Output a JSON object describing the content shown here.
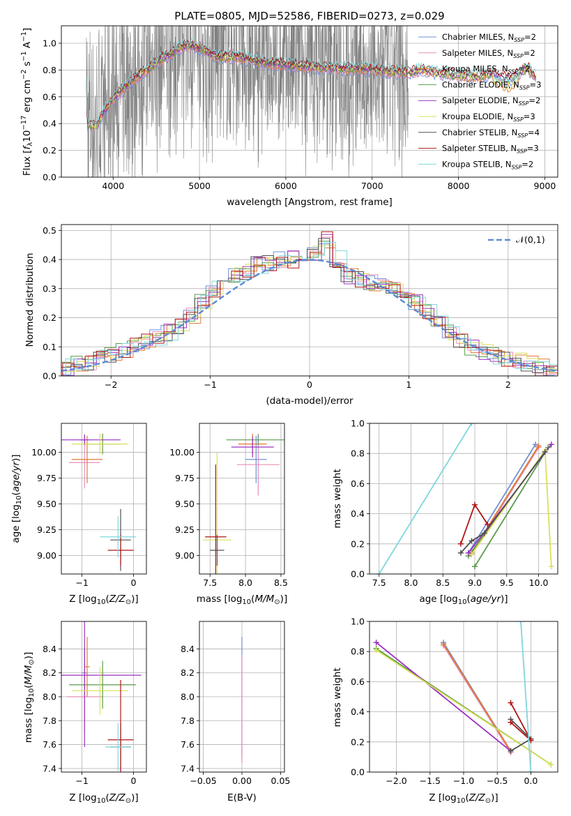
{
  "figure_title": "PLATE=0805, MJD=52586, FIBERID=0273, z=0.029",
  "colors": {
    "chabrier_miles": "#6f8fd8",
    "salpeter_miles": "#e58fb8",
    "kroupa_miles": "#e07b30",
    "chabrier_elodie": "#5a9a4c",
    "salpeter_elodie": "#9b30c0",
    "kroupa_elodie": "#d9e05a",
    "chabrier_stelib": "#505050",
    "salpeter_stelib": "#b01515",
    "kroupa_stelib": "#7fd7dc",
    "data": "#808080",
    "gaussian": "#5b8bd6"
  },
  "chart_data": [
    {
      "id": "spectrum",
      "type": "line",
      "title": "PLATE=0805, MJD=52586, FIBERID=0273, z=0.029",
      "xlabel": "wavelength [Angstrom, rest frame]",
      "ylabel": "Flux [f_λ 10^-17 erg cm^-2 s^-1 A^-1]",
      "xlim": [
        3400,
        9150
      ],
      "ylim": [
        0,
        1.13
      ],
      "xticks": [
        4000,
        5000,
        6000,
        7000,
        8000,
        9000
      ],
      "yticks": [
        0.0,
        0.2,
        0.4,
        0.6,
        0.8,
        1.0
      ],
      "data_range": [
        3690,
        7420
      ],
      "legend_position": "top-right",
      "legend": [
        "Chabrier MILES, N_SSP=2",
        "Salpeter MILES, N_SSP=2",
        "Kroupa MILES, N_SSP=2",
        "Chabrier ELODIE, N_SSP=3",
        "Salpeter ELODIE, N_SSP=2",
        "Kroupa ELODIE, N_SSP=3",
        "Chabrier STELIB, N_SSP=4",
        "Salpeter STELIB, N_SSP=3",
        "Kroupa STELIB, N_SSP=2"
      ],
      "model_continuum": {
        "x": [
          3700,
          3800,
          3900,
          4000,
          4100,
          4200,
          4300,
          4400,
          4500,
          4600,
          4700,
          4800,
          4900,
          5000,
          5100,
          5200,
          5300,
          5400,
          5500,
          5600,
          5800,
          6000,
          6200,
          6400,
          6600,
          6800,
          7000,
          7200,
          7400,
          7600,
          7800,
          8000,
          8200,
          8400,
          8600,
          8800,
          8900
        ],
        "y": [
          0.4,
          0.37,
          0.5,
          0.58,
          0.65,
          0.71,
          0.76,
          0.8,
          0.86,
          0.9,
          0.93,
          0.98,
          0.98,
          0.96,
          0.93,
          0.9,
          0.9,
          0.9,
          0.89,
          0.87,
          0.85,
          0.84,
          0.83,
          0.82,
          0.81,
          0.81,
          0.8,
          0.79,
          0.78,
          0.8,
          0.77,
          0.76,
          0.75,
          0.77,
          0.73,
          0.82,
          0.74
        ]
      }
    },
    {
      "id": "residuals",
      "type": "line",
      "xlabel": "(data-model)/error",
      "ylabel": "Normed distribution",
      "xlim": [
        -2.5,
        2.5
      ],
      "ylim": [
        0,
        0.52
      ],
      "xticks": [
        -2,
        -1,
        0,
        1,
        2
      ],
      "yticks": [
        0.0,
        0.1,
        0.2,
        0.3,
        0.4,
        0.5
      ],
      "legend": [
        "𝒩(0,1)"
      ],
      "legend_position": "top-right",
      "bin_edges_range": [
        -2.6,
        2.5
      ],
      "hist_values": [
        0.02,
        0.03,
        0.04,
        0.05,
        0.06,
        0.07,
        0.09,
        0.11,
        0.12,
        0.13,
        0.15,
        0.17,
        0.21,
        0.26,
        0.3,
        0.33,
        0.35,
        0.36,
        0.38,
        0.39,
        0.4,
        0.4,
        0.41,
        0.42,
        0.47,
        0.4,
        0.34,
        0.33,
        0.32,
        0.32,
        0.31,
        0.28,
        0.25,
        0.22,
        0.18,
        0.15,
        0.12,
        0.1,
        0.08,
        0.07,
        0.06,
        0.05,
        0.04,
        0.03,
        0.02
      ]
    },
    {
      "id": "age_vs_Z",
      "type": "scatter",
      "xlabel": "Z [log10(Z/Z⊙)]",
      "ylabel": "age  [log10(age/yr)]",
      "xlim": [
        -1.4,
        0.25
      ],
      "ylim": [
        8.82,
        10.28
      ],
      "xticks": [
        -1,
        0
      ],
      "yticks": [
        9.0,
        9.25,
        9.5,
        9.75,
        10.0
      ],
      "points": [
        {
          "x": -0.95,
          "y": 10.12,
          "xerr": 0.1,
          "yerr": 0.05
        },
        {
          "x": -0.95,
          "y": 9.9,
          "xerr": 0.3,
          "yerr": 0.25
        },
        {
          "x": -0.9,
          "y": 9.93,
          "xerr": 0.3,
          "yerr": 0.23
        },
        {
          "x": -0.6,
          "y": 10.08,
          "xerr": 0.35,
          "yerr": 0.1
        },
        {
          "x": -0.95,
          "y": 10.12,
          "xerr": 0.7,
          "yerr": 0.05
        },
        {
          "x": -0.65,
          "y": 10.08,
          "xerr": 0.55,
          "yerr": 0.1
        },
        {
          "x": -0.25,
          "y": 9.15,
          "xerr": 0.2,
          "yerr": 0.3
        },
        {
          "x": -0.25,
          "y": 9.05,
          "xerr": 0.25,
          "yerr": 0.15
        },
        {
          "x": -0.3,
          "y": 9.18,
          "xerr": 0.35,
          "yerr": 0.2
        }
      ]
    },
    {
      "id": "age_vs_mass",
      "type": "scatter",
      "xlabel": "mass [log10(M/M⊙)]",
      "xlim": [
        7.35,
        8.55
      ],
      "ylim": [
        8.82,
        10.28
      ],
      "xticks": [
        7.5,
        8.0,
        8.5
      ],
      "yticks": [
        9.0,
        9.25,
        9.5,
        9.75,
        10.0
      ],
      "points": [
        {
          "x": 8.15,
          "y": 9.93,
          "xerr": 0.15,
          "yerr": 0.23
        },
        {
          "x": 8.18,
          "y": 9.88,
          "xerr": 0.3,
          "yerr": 0.3
        },
        {
          "x": 8.1,
          "y": 10.08,
          "xerr": 0.2,
          "yerr": 0.1
        },
        {
          "x": 8.18,
          "y": 10.12,
          "xerr": 0.45,
          "yerr": 0.05
        },
        {
          "x": 8.1,
          "y": 10.05,
          "xerr": 0.3,
          "yerr": 0.1
        },
        {
          "x": 7.6,
          "y": 9.15,
          "xerr": 0.2,
          "yerr": 0.85
        },
        {
          "x": 7.6,
          "y": 9.05,
          "xerr": 0.1,
          "yerr": 0.15
        },
        {
          "x": 7.58,
          "y": 9.18,
          "xerr": 0.15,
          "yerr": 0.7
        }
      ]
    },
    {
      "id": "weight_vs_age",
      "type": "line",
      "xlabel": "age  [log10(age/yr)]",
      "ylabel": "mass weight",
      "xlim": [
        7.35,
        10.3
      ],
      "ylim": [
        0,
        1
      ],
      "xticks": [
        7.5,
        8.0,
        8.5,
        9.0,
        9.5,
        10.0
      ],
      "yticks": [
        0.0,
        0.2,
        0.4,
        0.6,
        0.8,
        1.0
      ],
      "series": [
        {
          "color": "#6f8fd8",
          "x": [
            8.9,
            9.95
          ],
          "y": [
            0.14,
            0.86
          ]
        },
        {
          "color": "#e58fb8",
          "x": [
            8.95,
            10.0
          ],
          "y": [
            0.13,
            0.84
          ]
        },
        {
          "color": "#e07b30",
          "x": [
            8.95,
            10.0
          ],
          "y": [
            0.14,
            0.85
          ]
        },
        {
          "color": "#5a9a4c",
          "x": [
            8.9,
            10.15,
            9.0
          ],
          "y": [
            0.12,
            0.84,
            0.05
          ]
        },
        {
          "color": "#9b30c0",
          "x": [
            8.9,
            10.2
          ],
          "y": [
            0.14,
            0.86
          ]
        },
        {
          "color": "#d9e05a",
          "x": [
            8.95,
            10.1,
            10.2
          ],
          "y": [
            0.13,
            0.82,
            0.05
          ]
        },
        {
          "color": "#505050",
          "x": [
            8.78,
            8.95,
            9.15,
            10.1
          ],
          "y": [
            0.14,
            0.22,
            0.27,
            0.81
          ]
        },
        {
          "color": "#b01515",
          "x": [
            8.78,
            9.0,
            9.2
          ],
          "y": [
            0.2,
            0.46,
            0.33
          ]
        },
        {
          "color": "#7fd7dc",
          "x": [
            7.5,
            8.95
          ],
          "y": [
            0.0,
            1.0
          ]
        }
      ]
    },
    {
      "id": "mass_vs_Z",
      "type": "scatter",
      "xlabel": "Z [log10(Z/Z⊙)]",
      "ylabel": "mass [log10(M/M⊙)]",
      "xlim": [
        -1.4,
        0.25
      ],
      "ylim": [
        7.37,
        8.63
      ],
      "xticks": [
        -1,
        0
      ],
      "yticks": [
        7.4,
        7.6,
        7.8,
        8.0,
        8.2,
        8.4
      ],
      "points": [
        {
          "x": -0.95,
          "y": 8.2,
          "xerr": 0.05,
          "yerr": 0.2
        },
        {
          "x": -0.95,
          "y": 8.0,
          "xerr": 0.35,
          "yerr": 0.3
        },
        {
          "x": -0.9,
          "y": 8.25,
          "xerr": 0.05,
          "yerr": 0.25
        },
        {
          "x": -0.6,
          "y": 8.1,
          "xerr": 0.65,
          "yerr": 0.2
        },
        {
          "x": -0.95,
          "y": 8.18,
          "xerr": 1.1,
          "yerr": 0.6
        },
        {
          "x": -0.65,
          "y": 8.05,
          "xerr": 0.55,
          "yerr": 0.2
        },
        {
          "x": -0.25,
          "y": 7.58,
          "xerr": 0.2,
          "yerr": 0.2
        },
        {
          "x": -0.25,
          "y": 7.64,
          "xerr": 0.25,
          "yerr": 0.5
        },
        {
          "x": -0.3,
          "y": 7.58,
          "xerr": 0.25,
          "yerr": 0.2
        }
      ]
    },
    {
      "id": "mass_vs_EBV",
      "type": "scatter",
      "xlabel": "E(B-V)",
      "xlim": [
        -0.055,
        0.055
      ],
      "ylim": [
        7.37,
        8.63
      ],
      "xticks": [
        -0.05,
        0.0,
        0.05
      ],
      "yticks": [
        7.4,
        7.6,
        7.8,
        8.0,
        8.2,
        8.4
      ],
      "points": [
        {
          "x": 0.0,
          "y": 8.0,
          "xerr": 0.0,
          "yerr": 0.5
        },
        {
          "x": 0.0,
          "y": 7.9,
          "xerr": 0.0,
          "yerr": 0.45
        }
      ]
    },
    {
      "id": "weight_vs_Z",
      "type": "line",
      "xlabel": "Z [log10(Z/Z⊙)]",
      "ylabel": "mass weight",
      "xlim": [
        -2.4,
        0.4
      ],
      "ylim": [
        0,
        1
      ],
      "xticks": [
        -2.0,
        -1.5,
        -1.0,
        -0.5,
        0.0
      ],
      "yticks": [
        0.0,
        0.2,
        0.4,
        0.6,
        0.8,
        1.0
      ],
      "series": [
        {
          "color": "#6f8fd8",
          "x": [
            -1.3,
            -0.3
          ],
          "y": [
            0.86,
            0.14
          ]
        },
        {
          "color": "#e58fb8",
          "x": [
            -1.3,
            -0.3
          ],
          "y": [
            0.84,
            0.13
          ]
        },
        {
          "color": "#e07b30",
          "x": [
            -1.3,
            -0.3
          ],
          "y": [
            0.85,
            0.14
          ]
        },
        {
          "color": "#5a9a4c",
          "x": [
            -2.3,
            0.3
          ],
          "y": [
            0.82,
            0.05
          ]
        },
        {
          "color": "#9b30c0",
          "x": [
            -2.3,
            -0.3
          ],
          "y": [
            0.86,
            0.14
          ]
        },
        {
          "color": "#d9e05a",
          "x": [
            -2.3,
            0.3
          ],
          "y": [
            0.81,
            0.05
          ]
        },
        {
          "color": "#505050",
          "x": [
            -0.3,
            0.0,
            -0.3
          ],
          "y": [
            0.35,
            0.22,
            0.14
          ]
        },
        {
          "color": "#b01515",
          "x": [
            -0.3,
            0.0,
            -0.3
          ],
          "y": [
            0.46,
            0.21,
            0.33
          ]
        },
        {
          "color": "#7fd7dc",
          "x": [
            -0.15,
            0.0
          ],
          "y": [
            1.0,
            0.0
          ]
        }
      ]
    }
  ]
}
